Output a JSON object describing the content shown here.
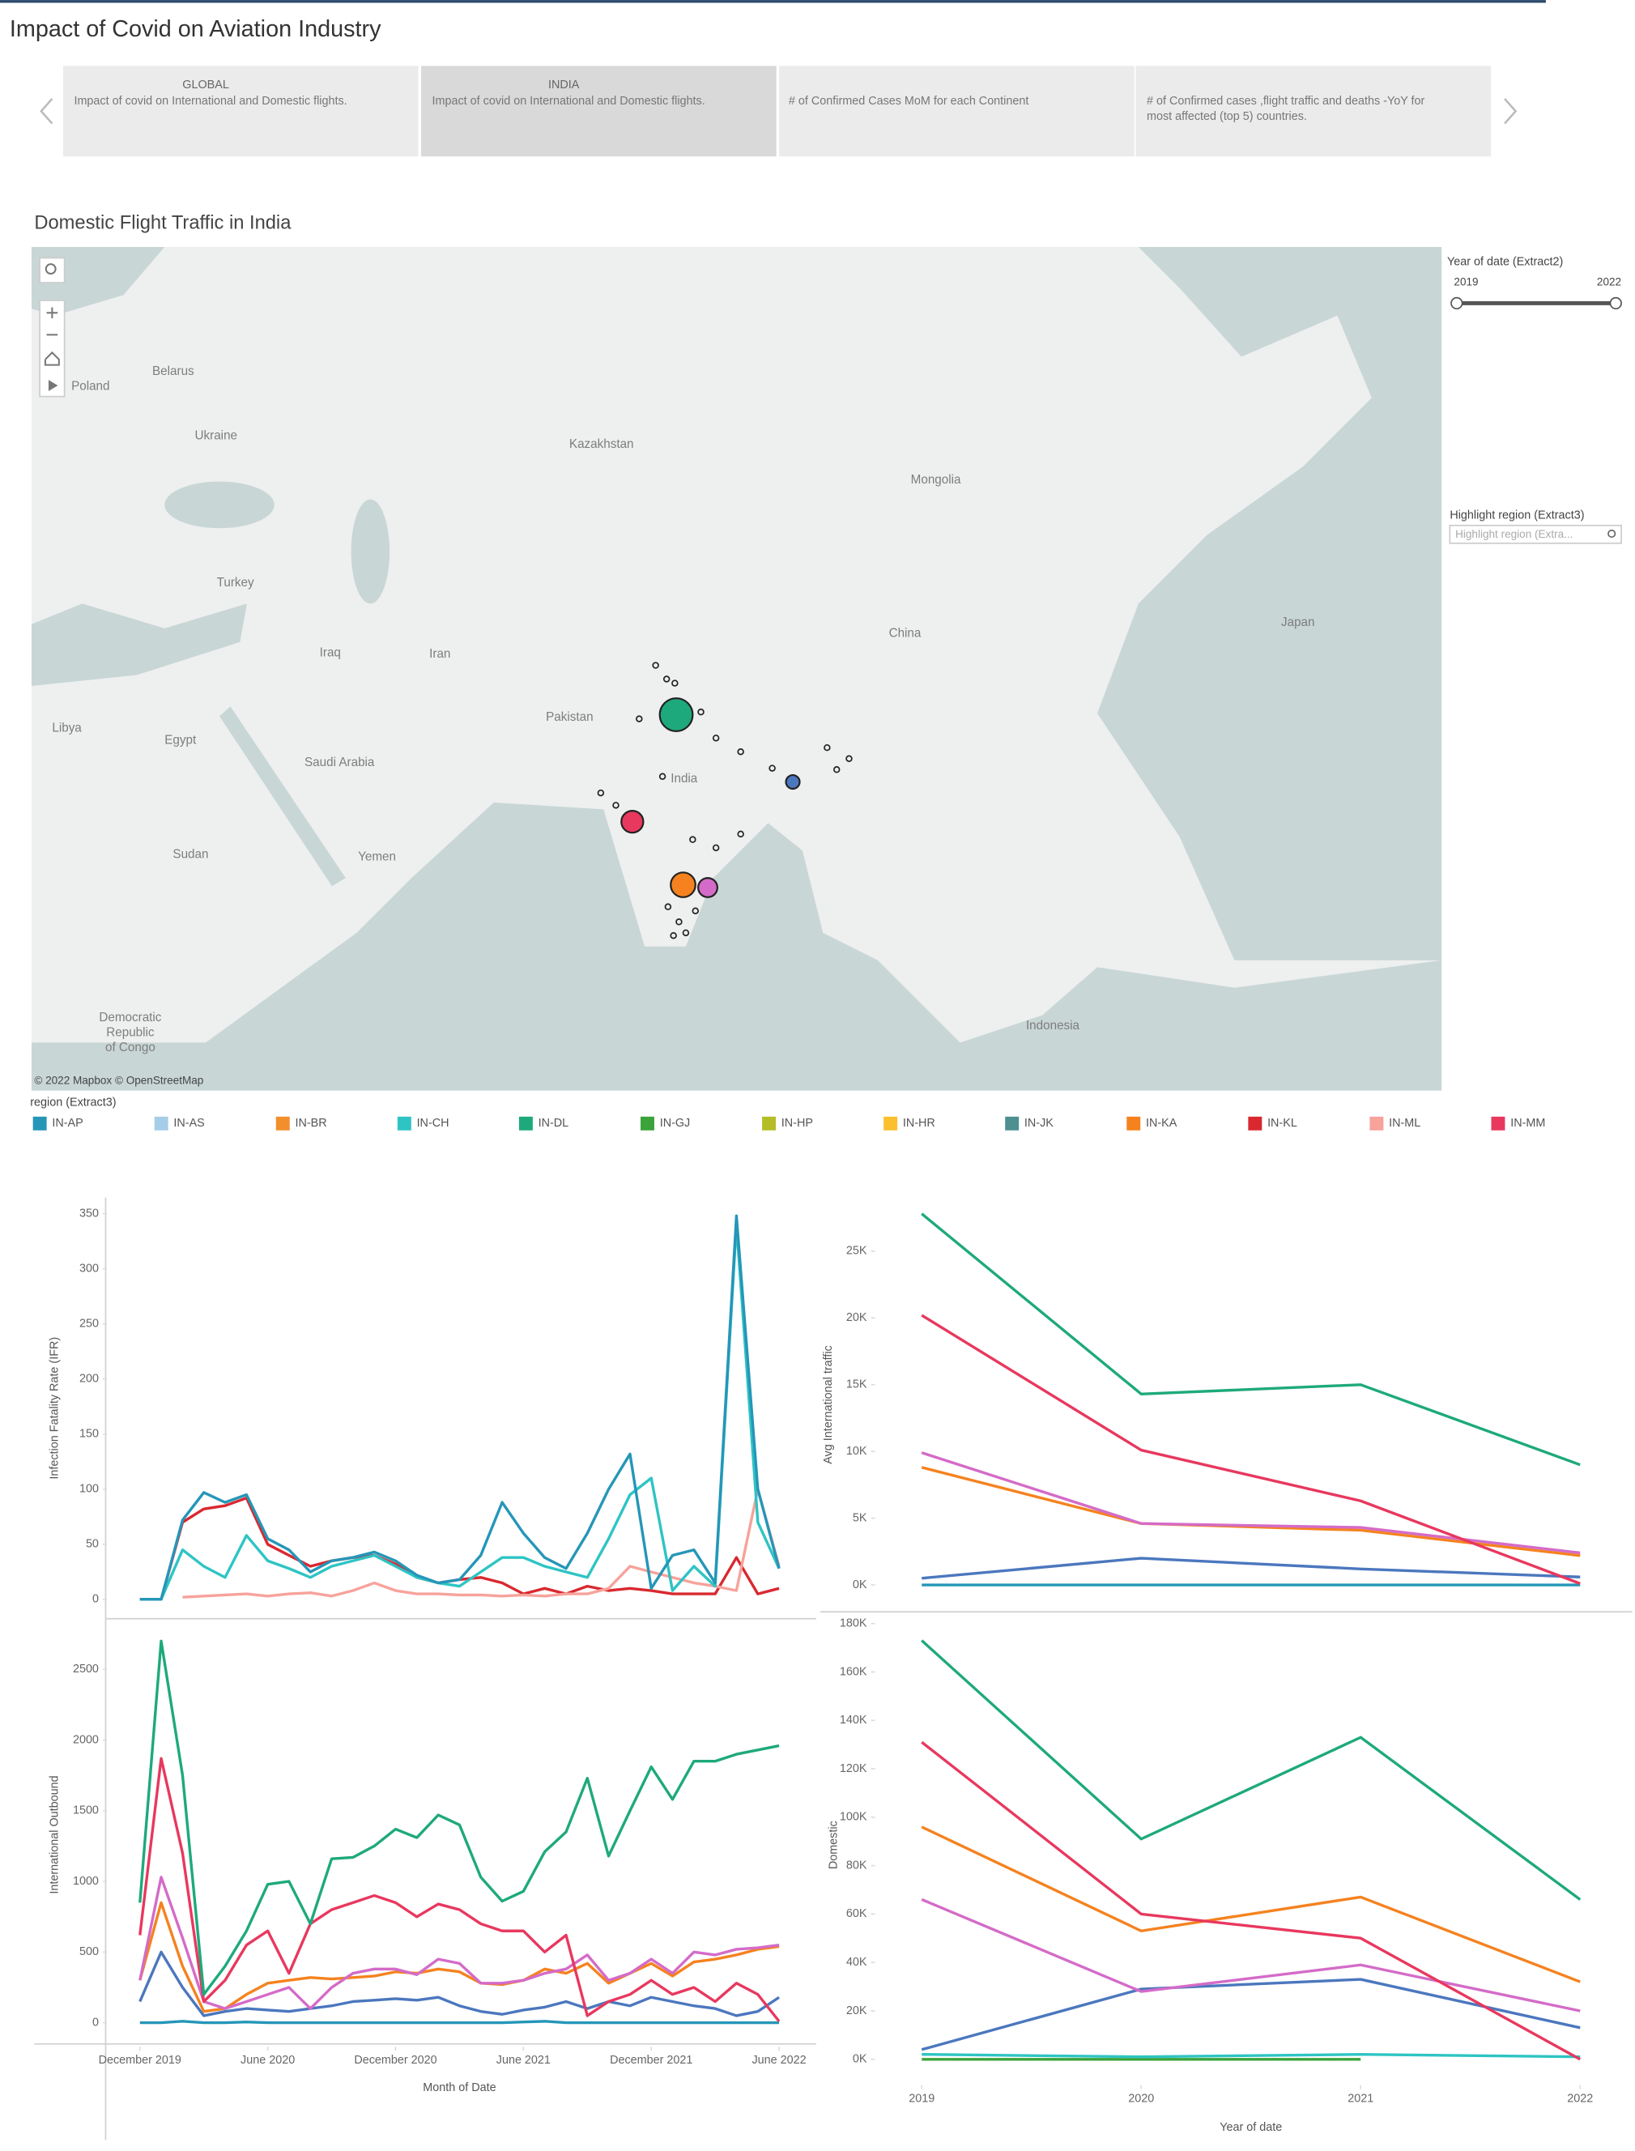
{
  "header": {
    "title": "Impact of Covid on Aviation Industry"
  },
  "tabs": [
    {
      "heading": "GLOBAL",
      "text": "Impact of covid on International and Domestic flights."
    },
    {
      "heading": "INDIA",
      "text": "Impact of covid on International and Domestic flights."
    },
    {
      "text": "# of Confirmed Cases MoM for each Continent"
    },
    {
      "lines": [
        "# of Confirmed cases ,flight traffic and deaths -YoY for",
        "most affected (top 5) countries."
      ]
    }
  ],
  "map": {
    "title": "Domestic Flight Traffic in India",
    "labels": [
      "Poland",
      "Belarus",
      "Ukraine",
      "Kazakhstan",
      "Mongolia",
      "Turkey",
      "Iraq",
      "Iran",
      "China",
      "Japan",
      "Libya",
      "Egypt",
      "Saudi Arabia",
      "Pakistan",
      "India",
      "Sudan",
      "Yemen",
      [
        "Democratic",
        "Republic",
        "of Congo"
      ],
      "Indonesia"
    ],
    "attribution": "© 2022 Mapbox © OpenStreetMap"
  },
  "filters": {
    "year": {
      "title": "Year of date (Extract2)",
      "min": 2019,
      "max": 2022
    },
    "highlight": {
      "title": "Highlight region (Extract3)",
      "placeholder": "Highlight region (Extra..."
    }
  },
  "legend": {
    "title": "region (Extract3)",
    "items": [
      {
        "name": "IN-AP",
        "color": "#2596b8"
      },
      {
        "name": "IN-AS",
        "color": "#a6cde8"
      },
      {
        "name": "IN-BR",
        "color": "#f28e2b"
      },
      {
        "name": "IN-CH",
        "color": "#2ec4c4"
      },
      {
        "name": "IN-DL",
        "color": "#1ea97c"
      },
      {
        "name": "IN-GJ",
        "color": "#3aa33a"
      },
      {
        "name": "IN-HP",
        "color": "#b5bd26"
      },
      {
        "name": "IN-HR",
        "color": "#fbc02d"
      },
      {
        "name": "IN-JK",
        "color": "#4e8f8f"
      },
      {
        "name": "IN-KA",
        "color": "#f5821f"
      },
      {
        "name": "IN-KL",
        "color": "#d9282f"
      },
      {
        "name": "IN-ML",
        "color": "#f7a29b"
      },
      {
        "name": "IN-MM",
        "color": "#e8385e"
      }
    ]
  },
  "chart_data": [
    {
      "type": "line",
      "y_label": "Infection Fatality Rate (IFR)",
      "x": [
        "2019-12",
        "2020-01",
        "2020-02",
        "2020-03",
        "2020-04",
        "2020-05",
        "2020-06",
        "2020-07",
        "2020-08",
        "2020-09",
        "2020-10",
        "2020-11",
        "2020-12",
        "2021-01",
        "2021-02",
        "2021-03",
        "2021-04",
        "2021-05",
        "2021-06",
        "2021-07",
        "2021-08",
        "2021-09",
        "2021-10",
        "2021-11",
        "2021-12",
        "2022-01",
        "2022-02",
        "2022-03",
        "2022-04",
        "2022-05",
        "2022-06"
      ],
      "ylim": [
        -15,
        362
      ],
      "yticks": [
        0,
        50,
        100,
        150,
        200,
        250,
        300,
        350
      ],
      "series": [
        {
          "name": "IN-KL",
          "color": "#d9282f",
          "values": [
            0,
            0,
            70,
            82,
            85,
            92,
            50,
            40,
            30,
            35,
            38,
            40,
            32,
            20,
            15,
            18,
            20,
            15,
            5,
            10,
            5,
            12,
            8,
            10,
            8,
            5,
            5,
            5,
            38,
            5,
            10
          ]
        },
        {
          "name": "IN-ML",
          "color": "#f7a29b",
          "values": [
            null,
            null,
            2,
            3,
            4,
            5,
            3,
            5,
            6,
            3,
            8,
            15,
            8,
            5,
            5,
            4,
            4,
            3,
            4,
            3,
            5,
            5,
            10,
            30,
            25,
            20,
            15,
            12,
            8,
            100,
            30
          ]
        },
        {
          "name": "IN-CH",
          "color": "#2ec4c4",
          "values": [
            0,
            0,
            45,
            30,
            20,
            58,
            35,
            28,
            20,
            30,
            35,
            40,
            30,
            20,
            15,
            12,
            25,
            38,
            38,
            30,
            25,
            20,
            55,
            95,
            110,
            8,
            30,
            12,
            340,
            70,
            28
          ]
        },
        {
          "name": "IN-AP",
          "color": "#2596b8",
          "values": [
            0,
            0,
            72,
            97,
            88,
            95,
            55,
            45,
            25,
            35,
            38,
            43,
            35,
            22,
            15,
            18,
            40,
            88,
            60,
            38,
            28,
            60,
            100,
            132,
            10,
            40,
            45,
            15,
            348,
            100,
            28
          ]
        }
      ]
    },
    {
      "type": "line",
      "y_label": "International Outbound",
      "x_label": "Month of Date",
      "x": [
        "2019-12",
        "2020-01",
        "2020-02",
        "2020-03",
        "2020-04",
        "2020-05",
        "2020-06",
        "2020-07",
        "2020-08",
        "2020-09",
        "2020-10",
        "2020-11",
        "2020-12",
        "2021-01",
        "2021-02",
        "2021-03",
        "2021-04",
        "2021-05",
        "2021-06",
        "2021-07",
        "2021-08",
        "2021-09",
        "2021-10",
        "2021-11",
        "2021-12",
        "2022-01",
        "2022-02",
        "2022-03",
        "2022-04",
        "2022-05",
        "2022-06"
      ],
      "xticks": [
        {
          "value": "2019-12",
          "label": "December 2019"
        },
        {
          "value": "2020-06",
          "label": "June 2020"
        },
        {
          "value": "2020-12",
          "label": "December 2020"
        },
        {
          "value": "2021-06",
          "label": "June 2021"
        },
        {
          "value": "2021-12",
          "label": "December 2021"
        },
        {
          "value": "2022-06",
          "label": "June 2022"
        }
      ],
      "ylim": [
        -150,
        2810
      ],
      "yticks": [
        0,
        500,
        1000,
        1500,
        2000,
        2500
      ],
      "series": [
        {
          "name": "IN-AP",
          "color": "#2596b8",
          "values": [
            0,
            0,
            10,
            0,
            0,
            5,
            0,
            0,
            0,
            0,
            0,
            0,
            0,
            0,
            0,
            0,
            0,
            0,
            5,
            10,
            0,
            0,
            0,
            0,
            0,
            0,
            0,
            0,
            0,
            0,
            0
          ]
        },
        {
          "color": "#4b77be",
          "values": [
            150,
            500,
            250,
            50,
            80,
            100,
            90,
            80,
            100,
            120,
            150,
            160,
            170,
            160,
            180,
            120,
            80,
            60,
            90,
            110,
            150,
            100,
            150,
            120,
            180,
            150,
            120,
            100,
            50,
            80,
            180
          ]
        },
        {
          "name": "IN-KA",
          "color": "#f5821f",
          "values": [
            300,
            850,
            400,
            80,
            100,
            200,
            280,
            300,
            320,
            310,
            320,
            330,
            360,
            350,
            380,
            360,
            280,
            270,
            300,
            380,
            350,
            420,
            280,
            350,
            420,
            330,
            430,
            450,
            480,
            520,
            540
          ]
        },
        {
          "color": "#d46bc8",
          "values": [
            300,
            1030,
            600,
            150,
            100,
            150,
            200,
            250,
            100,
            250,
            350,
            380,
            380,
            340,
            450,
            420,
            280,
            280,
            300,
            350,
            380,
            480,
            300,
            350,
            450,
            350,
            500,
            480,
            520,
            530,
            550
          ]
        },
        {
          "name": "IN-MM",
          "color": "#e8385e",
          "values": [
            620,
            1870,
            1200,
            150,
            300,
            550,
            650,
            350,
            700,
            800,
            850,
            900,
            850,
            750,
            840,
            800,
            700,
            650,
            650,
            500,
            620,
            50,
            150,
            200,
            300,
            200,
            250,
            150,
            280,
            200,
            10
          ]
        },
        {
          "name": "IN-DL",
          "color": "#1ea97c",
          "values": [
            850,
            2700,
            1750,
            200,
            400,
            650,
            980,
            1000,
            700,
            1160,
            1170,
            1250,
            1370,
            1310,
            1470,
            1400,
            1030,
            860,
            930,
            1210,
            1350,
            1730,
            1180,
            1500,
            1810,
            1580,
            1850,
            1850,
            1900,
            1930,
            1960
          ]
        }
      ]
    },
    {
      "type": "line",
      "y_label": "Avg International traffic",
      "x": [
        2019,
        2020,
        2021,
        2022
      ],
      "xlim": [
        2019,
        2022
      ],
      "ylim": [
        -1500,
        28500
      ],
      "yticks": [
        {
          "value": 0,
          "label": "0K"
        },
        {
          "value": 5000,
          "label": "5K"
        },
        {
          "value": 10000,
          "label": "10K"
        },
        {
          "value": 15000,
          "label": "15K"
        },
        {
          "value": 20000,
          "label": "20K"
        },
        {
          "value": 25000,
          "label": "25K"
        }
      ],
      "series": [
        {
          "name": "IN-AP",
          "color": "#2596b8",
          "values": [
            0,
            0,
            0,
            0
          ]
        },
        {
          "color": "#4b77be",
          "values": [
            500,
            2000,
            1200,
            600
          ]
        },
        {
          "name": "IN-KA",
          "color": "#f5821f",
          "values": [
            8800,
            4600,
            4100,
            2200
          ]
        },
        {
          "color": "#d46bc8",
          "values": [
            9900,
            4600,
            4300,
            2400
          ]
        },
        {
          "name": "IN-MM",
          "color": "#e8385e",
          "values": [
            20200,
            10100,
            6300,
            100
          ]
        },
        {
          "name": "IN-DL",
          "color": "#1ea97c",
          "values": [
            27800,
            14300,
            15000,
            9000
          ]
        }
      ]
    },
    {
      "type": "line",
      "y_label": "Domestic",
      "x_label": "Year of date",
      "x": [
        2019,
        2020,
        2021,
        2022
      ],
      "xlim": [
        2019,
        2022
      ],
      "xticks": [
        2019,
        2020,
        2021,
        2022
      ],
      "ylim": [
        -5000,
        182000
      ],
      "yticks": [
        {
          "value": 0,
          "label": "0K"
        },
        {
          "value": 20000,
          "label": "20K"
        },
        {
          "value": 40000,
          "label": "40K"
        },
        {
          "value": 60000,
          "label": "60K"
        },
        {
          "value": 80000,
          "label": "80K"
        },
        {
          "value": 100000,
          "label": "100K"
        },
        {
          "value": 120000,
          "label": "120K"
        },
        {
          "value": 140000,
          "label": "140K"
        },
        {
          "value": 160000,
          "label": "160K"
        },
        {
          "value": 180000,
          "label": "180K"
        }
      ],
      "series": [
        {
          "name": "IN-GJ",
          "color": "#3aa33a",
          "values": [
            0,
            0,
            0,
            null
          ]
        },
        {
          "name": "IN-CH",
          "color": "#2ec4c4",
          "values": [
            2000,
            1000,
            2000,
            1000
          ]
        },
        {
          "color": "#4b77be",
          "values": [
            4000,
            29000,
            33000,
            13000
          ]
        },
        {
          "color": "#d46bc8",
          "values": [
            66000,
            28000,
            39000,
            20000
          ]
        },
        {
          "name": "IN-KA",
          "color": "#f5821f",
          "values": [
            96000,
            53000,
            67000,
            32000
          ]
        },
        {
          "name": "IN-MM",
          "color": "#e8385e",
          "values": [
            131000,
            60000,
            50000,
            0
          ]
        },
        {
          "name": "IN-DL",
          "color": "#1ea97c",
          "values": [
            173000,
            91000,
            133000,
            66000
          ]
        }
      ]
    }
  ]
}
